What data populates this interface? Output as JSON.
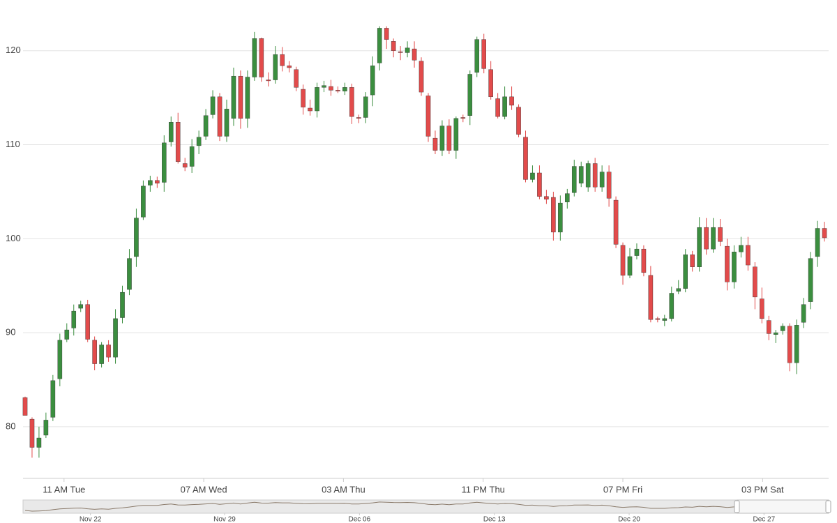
{
  "chart_data": {
    "type": "candlestick",
    "up_color": "#3b8e3f",
    "down_color": "#e24b4b",
    "grid": true,
    "open": [
      83.1,
      80.8,
      77.8,
      79.1,
      81.0,
      85.1,
      89.3,
      90.5,
      92.6,
      93.0,
      89.2,
      86.7,
      88.7,
      87.4,
      91.6,
      94.6,
      98.1,
      102.3,
      105.7,
      106.2,
      106.0,
      110.3,
      112.4,
      108.0,
      107.7,
      109.9,
      110.9,
      113.2,
      115.1,
      110.9,
      112.8,
      117.3,
      112.8,
      117.2,
      121.3,
      116.9,
      116.9,
      119.6,
      118.4,
      118.0,
      115.9,
      113.9,
      113.6,
      116.1,
      116.2,
      115.8,
      115.7,
      116.1,
      112.9,
      112.9,
      115.3,
      118.7,
      122.4,
      121.0,
      119.9,
      119.8,
      120.2,
      118.9,
      115.2,
      110.7,
      109.4,
      112.0,
      109.4,
      112.9,
      113.1,
      117.7,
      121.2,
      118.0,
      114.9,
      113.0,
      115.1,
      114.0,
      110.8,
      106.3,
      107.0,
      104.5,
      104.4,
      100.7,
      103.9,
      104.9,
      105.9,
      105.5,
      108.0,
      105.5,
      107.1,
      104.1,
      99.3,
      96.1,
      98.2,
      98.9,
      96.1,
      91.5,
      91.3,
      91.5,
      94.4,
      94.7,
      98.3,
      97.0,
      101.2,
      98.9,
      101.2,
      99.2,
      95.4,
      98.6,
      99.3,
      97.0,
      93.6,
      91.3,
      89.8,
      90.2,
      90.7,
      86.8,
      91.1,
      93.3,
      98.1,
      101.1
    ],
    "high": [
      83.2,
      81.0,
      80.0,
      81.5,
      85.5,
      89.9,
      91.0,
      93.0,
      93.4,
      93.5,
      89.6,
      89.0,
      89.2,
      92.5,
      95.0,
      98.9,
      103.2,
      106.2,
      106.7,
      106.6,
      111.0,
      113.0,
      113.4,
      108.6,
      110.6,
      111.5,
      113.8,
      115.8,
      115.5,
      114.8,
      118.2,
      117.9,
      117.9,
      122.0,
      121.4,
      117.7,
      120.5,
      120.4,
      118.9,
      118.3,
      116.4,
      114.8,
      116.6,
      116.8,
      116.9,
      116.2,
      116.6,
      116.5,
      113.2,
      115.6,
      119.4,
      122.6,
      122.6,
      121.3,
      120.5,
      121.0,
      121.0,
      119.3,
      115.5,
      111.5,
      112.6,
      112.7,
      113.0,
      113.2,
      117.9,
      121.5,
      121.8,
      118.9,
      115.5,
      116.2,
      116.2,
      114.3,
      111.5,
      107.8,
      107.8,
      105.2,
      105.0,
      104.6,
      105.3,
      108.4,
      108.2,
      108.3,
      108.6,
      107.8,
      107.8,
      104.5,
      99.6,
      99.0,
      99.5,
      99.3,
      97.1,
      91.7,
      91.9,
      94.9,
      95.6,
      98.9,
      98.7,
      102.3,
      102.2,
      102.2,
      102.1,
      100.0,
      99.3,
      100.2,
      100.2,
      97.5,
      94.8,
      91.8,
      90.3,
      91.0,
      91.0,
      91.4,
      93.7,
      98.6,
      101.9,
      101.8
    ],
    "low": [
      81.2,
      76.7,
      76.7,
      78.8,
      80.6,
      84.3,
      89.0,
      89.7,
      92.2,
      89.0,
      86.0,
      86.3,
      86.9,
      86.7,
      91.0,
      94.0,
      97.0,
      102.0,
      105.0,
      105.4,
      105.0,
      109.8,
      108.0,
      107.2,
      107.0,
      109.0,
      110.5,
      112.8,
      110.4,
      110.3,
      112.0,
      111.7,
      111.8,
      116.8,
      116.7,
      116.2,
      116.5,
      117.8,
      117.7,
      115.7,
      113.2,
      113.1,
      112.9,
      115.6,
      115.2,
      115.5,
      115.3,
      112.2,
      112.3,
      112.3,
      114.1,
      117.9,
      120.2,
      119.3,
      119.0,
      119.3,
      118.2,
      115.2,
      110.3,
      109.0,
      108.8,
      109.0,
      108.5,
      112.4,
      112.1,
      117.2,
      117.6,
      114.8,
      112.8,
      112.7,
      113.7,
      110.8,
      106.0,
      106.0,
      104.2,
      103.7,
      99.8,
      99.8,
      103.2,
      104.5,
      105.5,
      105.0,
      105.0,
      105.0,
      103.4,
      99.0,
      95.1,
      95.8,
      97.8,
      96.0,
      91.1,
      91.1,
      90.7,
      91.2,
      94.1,
      94.3,
      96.5,
      96.5,
      98.3,
      98.5,
      99.2,
      94.5,
      94.7,
      98.0,
      96.6,
      92.5,
      91.0,
      89.2,
      88.9,
      89.8,
      85.9,
      85.6,
      90.5,
      92.5,
      97.0,
      99.7
    ],
    "close": [
      81.2,
      77.8,
      78.8,
      80.7,
      84.9,
      89.2,
      90.3,
      92.3,
      93.0,
      89.3,
      86.7,
      88.7,
      87.4,
      91.5,
      94.3,
      97.9,
      102.2,
      105.6,
      106.2,
      105.9,
      110.2,
      112.4,
      108.2,
      107.6,
      109.8,
      110.8,
      113.1,
      115.1,
      110.9,
      113.8,
      117.3,
      112.8,
      117.2,
      121.3,
      117.2,
      116.8,
      119.6,
      118.4,
      118.2,
      116.1,
      114.0,
      113.6,
      116.1,
      116.3,
      115.8,
      115.7,
      116.1,
      113.0,
      112.8,
      115.1,
      118.4,
      122.4,
      121.2,
      120.0,
      119.8,
      120.3,
      119.0,
      115.6,
      110.9,
      109.4,
      112.0,
      109.4,
      112.8,
      112.8,
      117.5,
      121.2,
      118.1,
      115.1,
      113.0,
      115.1,
      114.2,
      111.1,
      106.3,
      107.0,
      104.5,
      104.2,
      100.7,
      103.8,
      104.8,
      107.7,
      107.7,
      108.0,
      105.5,
      107.1,
      104.3,
      99.4,
      96.1,
      98.1,
      98.9,
      96.4,
      91.4,
      91.4,
      91.5,
      94.2,
      94.7,
      98.3,
      97.0,
      101.2,
      98.9,
      101.2,
      99.7,
      95.4,
      98.6,
      99.3,
      97.2,
      93.8,
      91.5,
      89.9,
      90.0,
      90.7,
      86.8,
      90.8,
      93.0,
      97.9,
      101.1,
      100.1
    ],
    "xlim": [
      -0.3,
      115.6
    ],
    "xticks": [
      {
        "value": 5.6,
        "label": "11 AM Tue"
      },
      {
        "value": 25.7,
        "label": "07 AM Wed"
      },
      {
        "value": 45.8,
        "label": "03 AM Thu"
      },
      {
        "value": 65.9,
        "label": "11 PM Thu"
      },
      {
        "value": 86.0,
        "label": "07 PM Fri"
      },
      {
        "value": 106.1,
        "label": "03 PM Sat"
      }
    ],
    "ylim": [
      74.5,
      125.4
    ],
    "yticks": [
      80,
      90,
      100,
      110,
      120
    ],
    "navigator": {
      "xticks": [
        {
          "value": 9.4,
          "label": "Nov 22"
        },
        {
          "value": 28.7,
          "label": "Nov 29"
        },
        {
          "value": 48.1,
          "label": "Dec 06"
        },
        {
          "value": 67.5,
          "label": "Dec 13"
        },
        {
          "value": 86.9,
          "label": "Dec 20"
        },
        {
          "value": 106.3,
          "label": "Dec 27"
        }
      ]
    }
  }
}
